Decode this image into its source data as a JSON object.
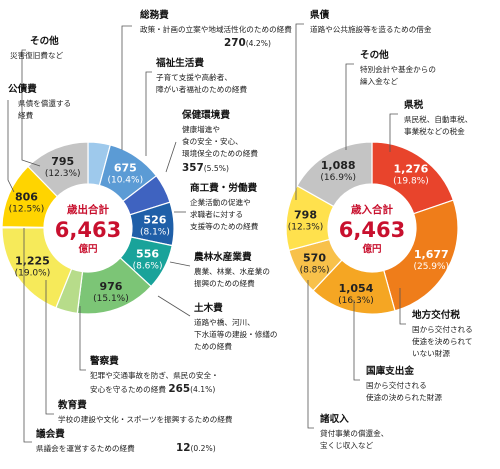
{
  "chart_data": [
    {
      "type": "pie",
      "title": "歳出合計",
      "total": "6,463",
      "unit": "億円",
      "slices": [
        {
          "name": "総務費",
          "value": 270,
          "pct": "4.2%",
          "desc": "政策・計画の立案や地域活性化のための経費",
          "label_value": "270",
          "label_pct": "(4.2%)",
          "color": "#9ec9ec"
        },
        {
          "name": "福祉生活費",
          "value": 675,
          "pct": "10.4%",
          "desc": "子育て支援や高齢者、障がい者福祉のための経費",
          "label_value": "675",
          "label_pct": "(10.4%)",
          "color": "#5b9bd5"
        },
        {
          "name": "保健環境費",
          "value": 357,
          "pct": "5.5%",
          "desc": "健康増進や食の安全・安心、環境保全のための経費",
          "label_value": "357",
          "label_pct": "(5.5%)",
          "color": "#3f63c0"
        },
        {
          "name": "商工費・労働費",
          "value": 526,
          "pct": "8.1%",
          "desc": "企業活動の促進や求職者に対する支援等のための経費",
          "label_value": "526",
          "label_pct": "(8.1%)",
          "color": "#1f5fa8"
        },
        {
          "name": "農林水産業費",
          "value": 556,
          "pct": "8.6%",
          "desc": "農業、林業、水産業の振興のための経費",
          "label_value": "556",
          "label_pct": "(8.6%)",
          "color": "#19a39a"
        },
        {
          "name": "土木費",
          "value": 976,
          "pct": "15.1%",
          "desc": "道路や橋、河川、下水道等の建設・修繕のための経費",
          "label_value": "976",
          "label_pct": "(15.1%)",
          "color": "#7cc576"
        },
        {
          "name": "警察費",
          "value": 265,
          "pct": "4.1%",
          "desc": "犯罪や交通事故を防ぎ、県民の安全・安心を守るための経費",
          "label_value": "265",
          "label_pct": "(4.1%)",
          "color": "#b7dc8a"
        },
        {
          "name": "教育費",
          "value": 1225,
          "pct": "19.0%",
          "desc": "学校の建設や文化・スポーツを振興するための経費",
          "label_value": "1,225",
          "label_pct": "(19.0%)",
          "color": "#f6ea5a"
        },
        {
          "name": "議会費",
          "value": 12,
          "pct": "0.2%",
          "desc": "県議会を運営するための経費",
          "label_value": "12",
          "label_pct": "(0.2%)",
          "color": "#f6ea5a"
        },
        {
          "name": "公債費",
          "value": 806,
          "pct": "12.5%",
          "desc": "県債を償還する経費",
          "label_value": "806",
          "label_pct": "(12.5%)",
          "color": "#ffd400"
        },
        {
          "name": "その他",
          "value": 795,
          "pct": "12.3%",
          "desc": "災害復旧費など",
          "label_value": "795",
          "label_pct": "(12.3%)",
          "color": "#c4c4c4"
        }
      ]
    },
    {
      "type": "pie",
      "title": "歳入合計",
      "total": "6,463",
      "unit": "億円",
      "slices": [
        {
          "name": "県税",
          "value": 1276,
          "pct": "19.8%",
          "desc": "県民税、自動車税、事業税などの税金",
          "label_value": "1,276",
          "label_pct": "(19.8%)",
          "color": "#e8442c"
        },
        {
          "name": "地方交付税",
          "value": 1677,
          "pct": "25.9%",
          "desc": "国から交付される使途を決められていない財源",
          "label_value": "1,677",
          "label_pct": "(25.9%)",
          "color": "#ef7d1a"
        },
        {
          "name": "国庫支出金",
          "value": 1054,
          "pct": "16.3%",
          "desc": "国から交付される使途の決められた財源",
          "label_value": "1,054",
          "label_pct": "(16.3%)",
          "color": "#f5a623"
        },
        {
          "name": "諸収入",
          "value": 570,
          "pct": "8.8%",
          "desc": "貸付事業の償還金、宝くじ収入など",
          "label_value": "570",
          "label_pct": "(8.8%)",
          "color": "#f8c14a"
        },
        {
          "name": "県債",
          "value": 798,
          "pct": "12.3%",
          "desc": "道路や公共施設等を造るための借金",
          "label_value": "798",
          "label_pct": "(12.3%)",
          "color": "#ffe14d"
        },
        {
          "name": "その他",
          "value": 1088,
          "pct": "16.9%",
          "desc": "特別会計や基金からの繰入金など",
          "label_value": "1,088",
          "label_pct": "(16.9%)",
          "color": "#c4c4c4"
        }
      ]
    }
  ]
}
